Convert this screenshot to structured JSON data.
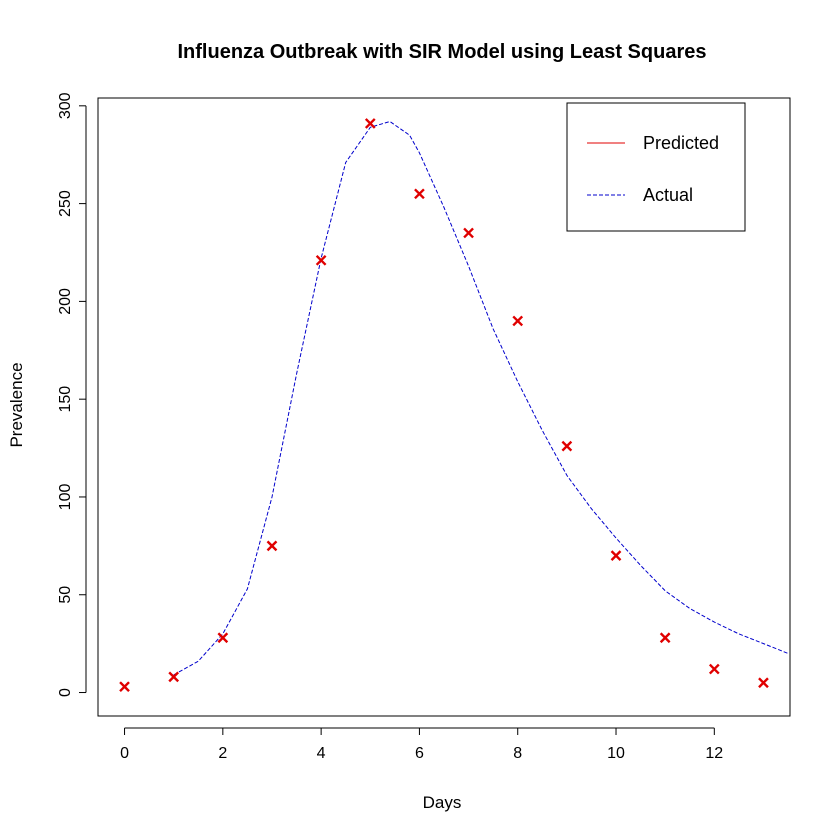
{
  "chart_data": {
    "type": "line",
    "title": "Influenza Outbreak with SIR Model using Least Squares",
    "xlabel": "Days",
    "ylabel": "Prevalence",
    "xlim": [
      -0.54,
      13.54
    ],
    "ylim": [
      -12,
      304
    ],
    "xticks": [
      0,
      2,
      4,
      6,
      8,
      10,
      12
    ],
    "yticks": [
      0,
      50,
      100,
      150,
      200,
      250,
      300
    ],
    "grid": false,
    "legend_position": "top-right",
    "legend": [
      {
        "label": "Predicted",
        "color": "#e00000",
        "style": "solid"
      },
      {
        "label": "Actual",
        "color": "#0000cc",
        "style": "dashed"
      }
    ],
    "points": {
      "marker": "x",
      "color": "#e00000",
      "x": [
        0,
        1,
        2,
        3,
        4,
        5,
        6,
        7,
        8,
        9,
        10,
        11,
        12,
        13
      ],
      "y": [
        3,
        8,
        28,
        75,
        221,
        291,
        255,
        235,
        190,
        126,
        70,
        28,
        12,
        5
      ]
    },
    "curve": {
      "color": "#0000cc",
      "style": "dashed",
      "x": [
        1,
        1.5,
        2,
        2.5,
        3,
        3.5,
        4,
        4.5,
        5,
        5.4,
        5.8,
        6,
        6.5,
        7,
        7.5,
        8,
        8.5,
        9,
        9.5,
        10,
        10.5,
        11,
        11.5,
        12,
        12.5,
        13,
        13.5
      ],
      "y": [
        9,
        16,
        30,
        53,
        100,
        163,
        222,
        271,
        289,
        292,
        285,
        276,
        248,
        218,
        186,
        159,
        134,
        111,
        94,
        79,
        65,
        52,
        43,
        36,
        30,
        25,
        20
      ]
    }
  }
}
